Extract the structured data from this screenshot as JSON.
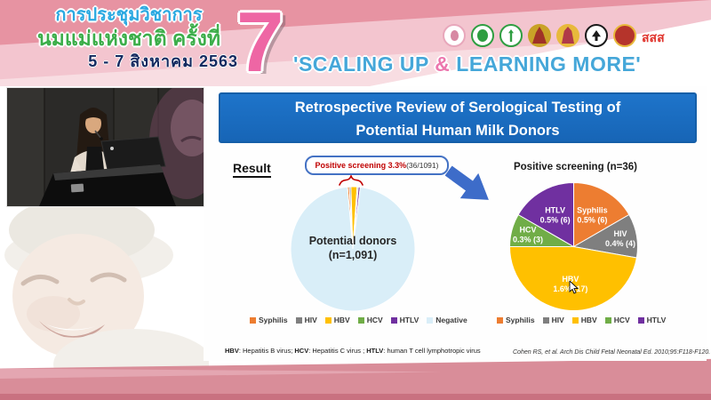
{
  "header": {
    "title_line1": "การประชุมวิชาการ",
    "title_line2": "นมแม่แห่งชาติ ครั้งที่",
    "date_line": "5 - 7 สิงหาคม 2563",
    "edition_number": "7",
    "tagline_open": "'SCALING UP ",
    "tagline_amp": "&",
    "tagline_close": " LEARNING MORE'",
    "thaihealth_logo_text": "สสส",
    "colors": {
      "band_pink": "#E793A2",
      "tagline_blue": "#45A7D9",
      "tagline_amp_pink": "#EC77AE",
      "seven_pink": "#EE66A4",
      "title1_blue": "#2BA9E1",
      "title2_green": "#3CAE4A",
      "date_navy": "#152A60"
    }
  },
  "slide": {
    "title": "Retrospective Review of Serological Testing of Potential Human Milk Donors",
    "title_bg_color": "#1B6FC4",
    "result_label": "Result",
    "callout_highlight": "Positive screening 3.3%",
    "callout_detail": " (36/1091)",
    "callout_highlight_color": "#C00000",
    "footnote": [
      {
        "abbr": "HBV",
        "def": ": Hepatitis B virus; "
      },
      {
        "abbr": "HCV",
        "def": ": Hepatitis C virus ; "
      },
      {
        "abbr": "HTLV",
        "def": ": human T cell lymphotropic virus"
      }
    ],
    "citation": "Cohen RS, et al. Arch Dis Child Fetal Neonatal Ed. 2010;95:F118-F120."
  },
  "chart_data": [
    {
      "type": "pie",
      "title": "Potential donors (n=1,091)",
      "center_label_line1": "Potential donors",
      "center_label_line2": "(n=1,091)",
      "categories": [
        "Syphilis",
        "HIV",
        "HBV",
        "HCV",
        "HTLV",
        "Negative"
      ],
      "values": [
        0.5,
        0.4,
        1.6,
        0.3,
        0.5,
        96.7
      ],
      "counts": [
        6,
        4,
        17,
        3,
        6,
        1055
      ],
      "unit": "percent of 1091 potential donors",
      "colors": [
        "#ED7D31",
        "#7F7F7F",
        "#FFC000",
        "#70AD47",
        "#7030A0",
        "#D9EEF8"
      ],
      "annotation": "Positive screening 3.3% (36/1091)",
      "start_angle_deg": -5,
      "legend_position": "bottom"
    },
    {
      "type": "pie",
      "title": "Positive screening (n=36)",
      "categories": [
        "Syphilis",
        "HIV",
        "HBV",
        "HCV",
        "HTLV"
      ],
      "values": [
        6,
        4,
        17,
        3,
        6
      ],
      "pct_labels": [
        "0.5% (6)",
        "0.4% (4)",
        "1.6% (17)",
        "0.3% (3)",
        "0.5% (6)"
      ],
      "colors": [
        "#ED7D31",
        "#7F7F7F",
        "#FFC000",
        "#70AD47",
        "#7030A0"
      ],
      "label_color": "#FFFFFF",
      "start_angle_deg": 0,
      "legend_position": "bottom"
    }
  ]
}
